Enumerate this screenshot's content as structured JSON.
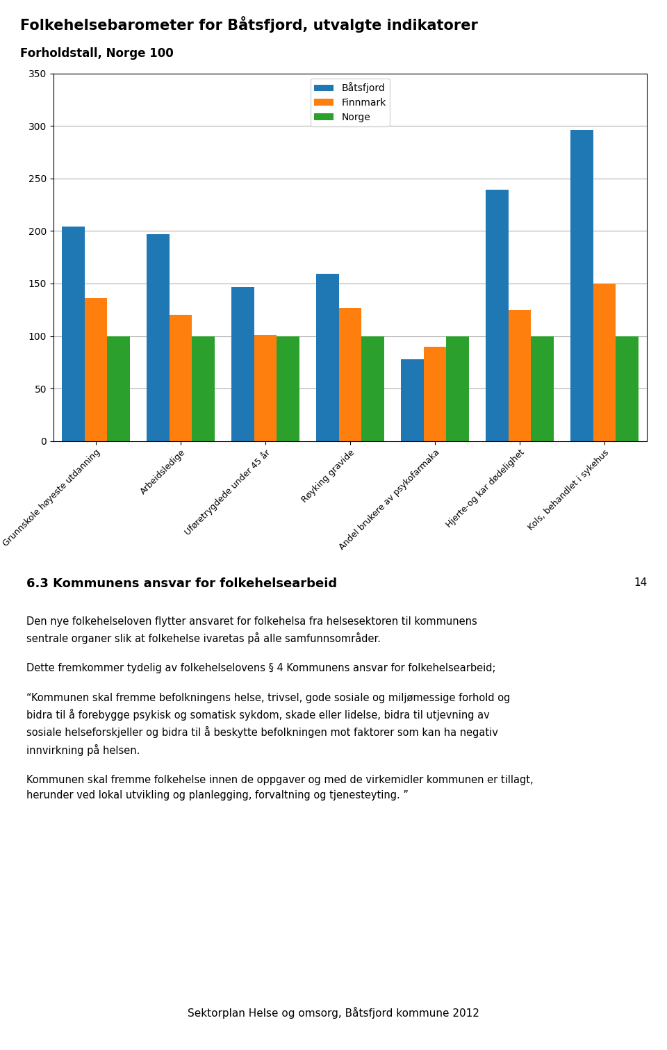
{
  "chart_data": {
    "type": "bar",
    "title": "Folkehelsebarometer for Båtsfjord, utvalgte indikatorer",
    "subtitle": "Forholdstall, Norge 100",
    "categories": [
      "Grunnskole høyeste utdanning",
      "Arbeidsledige",
      "Uføretrygdede under 45 år",
      "Røyking gravide",
      "Andel brukere av psykofarmaka",
      "Hjerte-og kar dødelighet",
      "Kols, behandlet i sykehus"
    ],
    "series": [
      {
        "name": "Båtsfjord",
        "values": [
          204,
          197,
          147,
          159,
          78,
          239,
          296
        ]
      },
      {
        "name": "Finnmark",
        "values": [
          136,
          120,
          101,
          127,
          90,
          125,
          150
        ]
      },
      {
        "name": "Norge",
        "values": [
          100,
          100,
          100,
          100,
          100,
          100,
          100
        ]
      }
    ],
    "ylim": [
      0,
      350
    ],
    "yticks": [
      0,
      50,
      100,
      150,
      200,
      250,
      300,
      350
    ],
    "grid": true,
    "legend": "upper center",
    "annotations": [
      "6.3 Kommunens ansvar for folkehelsearbeid",
      "14",
      "Den nye folkehelseloven flytter ansvaret for folkehelsa fra helsesektoren til kommunens sentrale organer slik at folkehelse ivaretas på alle samfunnsområder.",
      "Dette fremkommer tydelig av folkehelselovens § 4 Kommunens ansvar for folkehelsearbeid;",
      "“Kommunen skal fremme befolkningens helse, trivsel, gode sosiale og miljømessige forhold og bidra til å forebygge psykisk og somatisk sykdom, skade eller lidelse, bidra til utjevning av sosiale helseforskjeller og bidra til å beskytte befolkningen mot faktorer som kan ha negativ innvirkning på helsen.",
      "Kommunen skal fremme folkehelse innen de oppgaver og med de virkemidler kommunen er tillagt, herunder ved lokal utvikling og planlegging, forvaltning og tjenesteyting. ”",
      "Sektorplan Helse og omsorg, Båtsfjord kommune 2012"
    ]
  }
}
